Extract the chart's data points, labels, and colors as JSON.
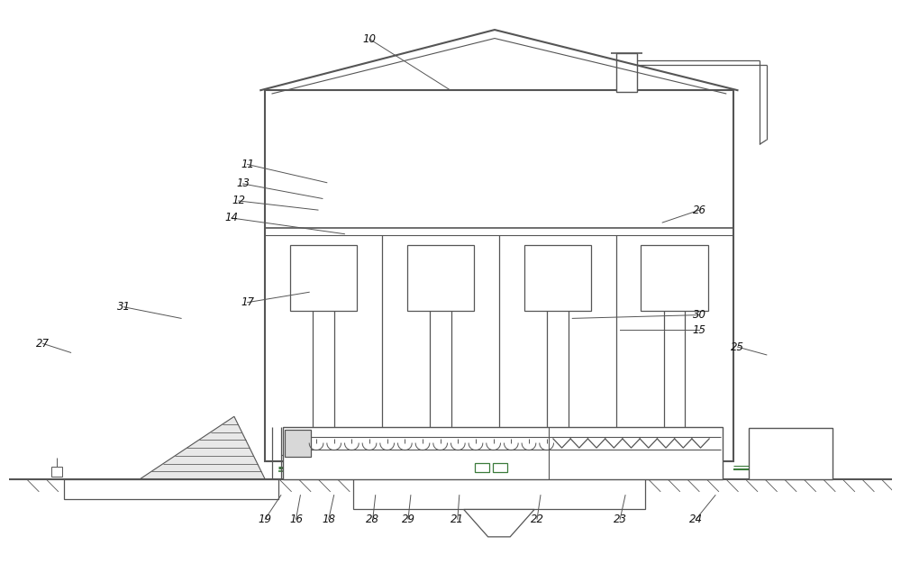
{
  "bg": "#ffffff",
  "lc": "#555555",
  "gc": "#3a7a3a",
  "fw": 10.0,
  "fh": 6.46,
  "dpi": 100,
  "leaders": {
    "10": [
      0.408,
      0.058,
      0.5,
      0.148
    ],
    "11": [
      0.27,
      0.278,
      0.36,
      0.31
    ],
    "13": [
      0.265,
      0.312,
      0.355,
      0.338
    ],
    "12": [
      0.26,
      0.342,
      0.35,
      0.358
    ],
    "14": [
      0.252,
      0.372,
      0.38,
      0.4
    ],
    "26": [
      0.782,
      0.358,
      0.74,
      0.38
    ],
    "17": [
      0.27,
      0.52,
      0.34,
      0.502
    ],
    "31": [
      0.13,
      0.528,
      0.195,
      0.548
    ],
    "27": [
      0.038,
      0.592,
      0.07,
      0.608
    ],
    "30": [
      0.782,
      0.542,
      0.638,
      0.548
    ],
    "15": [
      0.782,
      0.568,
      0.692,
      0.568
    ],
    "25": [
      0.825,
      0.598,
      0.858,
      0.612
    ],
    "19": [
      0.29,
      0.9,
      0.308,
      0.858
    ],
    "16": [
      0.325,
      0.9,
      0.33,
      0.858
    ],
    "18": [
      0.362,
      0.9,
      0.368,
      0.858
    ],
    "28": [
      0.412,
      0.9,
      0.415,
      0.858
    ],
    "29": [
      0.452,
      0.9,
      0.455,
      0.858
    ],
    "21": [
      0.508,
      0.9,
      0.51,
      0.858
    ],
    "22": [
      0.598,
      0.9,
      0.602,
      0.858
    ],
    "23": [
      0.692,
      0.9,
      0.698,
      0.858
    ],
    "24": [
      0.778,
      0.9,
      0.8,
      0.858
    ]
  }
}
